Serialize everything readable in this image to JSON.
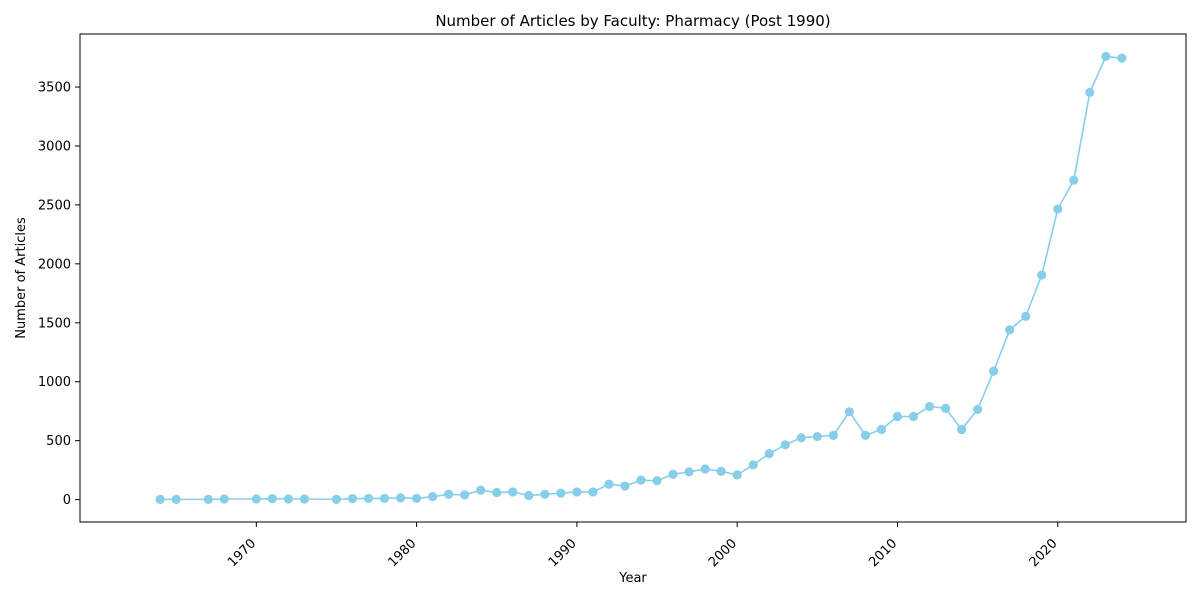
{
  "chart_data": {
    "type": "line",
    "title": "Number of Articles by Faculty: Pharmacy (Post 1990)",
    "xlabel": "Year",
    "ylabel": "Number of Articles",
    "xlim": [
      1959.0,
      2028.0
    ],
    "ylim": [
      -190,
      3950
    ],
    "xticks": [
      1970,
      1980,
      1990,
      2000,
      2010,
      2020
    ],
    "yticks": [
      0,
      500,
      1000,
      1500,
      2000,
      2500,
      3000,
      3500
    ],
    "grid": false,
    "legend": "none",
    "color": "#87ceeb",
    "series": [
      {
        "x": [
          1964,
          1965,
          1967,
          1968,
          1970,
          1971,
          1972,
          1973,
          1975,
          1976,
          1977,
          1978,
          1979,
          1980,
          1981,
          1982,
          1983,
          1984,
          1985,
          1986,
          1987,
          1988,
          1989,
          1990,
          1991,
          1992,
          1993,
          1994,
          1995,
          1996,
          1997,
          1998,
          1999,
          2000,
          2001,
          2002,
          2003,
          2004,
          2005,
          2006,
          2007,
          2008,
          2009,
          2010,
          2011,
          2012,
          2013,
          2014,
          2015,
          2016,
          2017,
          2018,
          2019,
          2020,
          2021,
          2022,
          2023,
          2024
        ],
        "y": [
          2,
          2,
          2,
          5,
          5,
          8,
          5,
          5,
          2,
          8,
          10,
          10,
          15,
          10,
          25,
          45,
          40,
          80,
          60,
          65,
          35,
          45,
          55,
          65,
          65,
          130,
          115,
          165,
          160,
          215,
          235,
          260,
          240,
          210,
          295,
          390,
          465,
          525,
          535,
          545,
          745,
          545,
          595,
          705,
          705,
          790,
          775,
          595,
          765,
          1090,
          1440,
          1555,
          1905,
          2465,
          2710,
          3455,
          3760,
          3745
        ]
      }
    ]
  }
}
